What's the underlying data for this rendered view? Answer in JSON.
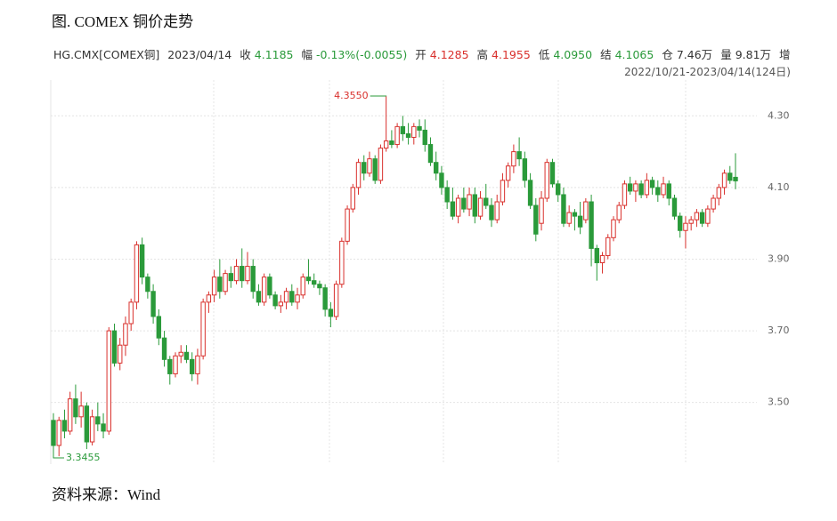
{
  "title": "图. COMEX 铜价走势",
  "header": {
    "symbol": "HG.CMX[COMEX铜]",
    "date": "2023/04/14",
    "items": [
      {
        "label": "收",
        "value": "4.1185",
        "color": "#2a9a3a"
      },
      {
        "label": "幅",
        "value": "-0.13%(-0.0055)",
        "color": "#2a9a3a"
      },
      {
        "label": "开",
        "value": "4.1285",
        "color": "#d9302c"
      },
      {
        "label": "高",
        "value": "4.1955",
        "color": "#d9302c"
      },
      {
        "label": "低",
        "value": "4.0950",
        "color": "#2a9a3a"
      },
      {
        "label": "结",
        "value": "4.1065",
        "color": "#2a9a3a"
      },
      {
        "label": "仓",
        "value": "7.46万",
        "color": "#333333"
      },
      {
        "label": "量",
        "value": "9.81万",
        "color": "#333333"
      },
      {
        "label": "增",
        "value": "",
        "color": "#333333"
      }
    ],
    "range": "2022/10/21-2023/04/14(124日)"
  },
  "source": "资料来源：Wind",
  "chart_data": {
    "type": "candlestick",
    "up_color": "#d9302c",
    "down_color": "#2a9a3a",
    "ylim": [
      3.328,
      4.4
    ],
    "yticks": [
      {
        "value": 3.5,
        "label": "3.50"
      },
      {
        "value": 3.7,
        "label": "3.70"
      },
      {
        "value": 3.9,
        "label": "3.90"
      },
      {
        "value": 4.1,
        "label": "4.10"
      },
      {
        "value": 4.3,
        "label": "4.30"
      }
    ],
    "grid": true,
    "max_label": "4.3550",
    "max_index": 60,
    "min_label": "3.3455",
    "min_index": 0,
    "candles": [
      [
        3.45,
        3.47,
        3.3455,
        3.38
      ],
      [
        3.38,
        3.46,
        3.35,
        3.45
      ],
      [
        3.45,
        3.48,
        3.4,
        3.42
      ],
      [
        3.42,
        3.53,
        3.41,
        3.51
      ],
      [
        3.51,
        3.55,
        3.44,
        3.46
      ],
      [
        3.46,
        3.53,
        3.43,
        3.49
      ],
      [
        3.49,
        3.5,
        3.37,
        3.39
      ],
      [
        3.39,
        3.48,
        3.38,
        3.46
      ],
      [
        3.46,
        3.5,
        3.42,
        3.44
      ],
      [
        3.44,
        3.47,
        3.4,
        3.42
      ],
      [
        3.42,
        3.71,
        3.41,
        3.7
      ],
      [
        3.7,
        3.72,
        3.6,
        3.61
      ],
      [
        3.61,
        3.68,
        3.59,
        3.66
      ],
      [
        3.66,
        3.74,
        3.63,
        3.72
      ],
      [
        3.72,
        3.79,
        3.7,
        3.78
      ],
      [
        3.78,
        3.95,
        3.76,
        3.94
      ],
      [
        3.94,
        3.96,
        3.83,
        3.85
      ],
      [
        3.85,
        3.86,
        3.79,
        3.81
      ],
      [
        3.81,
        3.83,
        3.72,
        3.74
      ],
      [
        3.74,
        3.76,
        3.66,
        3.68
      ],
      [
        3.68,
        3.7,
        3.6,
        3.62
      ],
      [
        3.62,
        3.63,
        3.55,
        3.58
      ],
      [
        3.58,
        3.64,
        3.57,
        3.63
      ],
      [
        3.63,
        3.66,
        3.61,
        3.64
      ],
      [
        3.64,
        3.66,
        3.61,
        3.62
      ],
      [
        3.62,
        3.64,
        3.56,
        3.58
      ],
      [
        3.58,
        3.65,
        3.55,
        3.63
      ],
      [
        3.63,
        3.79,
        3.62,
        3.78
      ],
      [
        3.78,
        3.81,
        3.75,
        3.8
      ],
      [
        3.8,
        3.87,
        3.78,
        3.85
      ],
      [
        3.85,
        3.9,
        3.79,
        3.81
      ],
      [
        3.81,
        3.87,
        3.8,
        3.86
      ],
      [
        3.86,
        3.88,
        3.82,
        3.84
      ],
      [
        3.84,
        3.9,
        3.83,
        3.88
      ],
      [
        3.88,
        3.93,
        3.82,
        3.84
      ],
      [
        3.84,
        3.92,
        3.83,
        3.88
      ],
      [
        3.88,
        3.9,
        3.79,
        3.81
      ],
      [
        3.81,
        3.83,
        3.77,
        3.78
      ],
      [
        3.78,
        3.86,
        3.77,
        3.85
      ],
      [
        3.85,
        3.86,
        3.79,
        3.8
      ],
      [
        3.8,
        3.81,
        3.76,
        3.77
      ],
      [
        3.77,
        3.8,
        3.75,
        3.78
      ],
      [
        3.78,
        3.82,
        3.76,
        3.81
      ],
      [
        3.81,
        3.83,
        3.77,
        3.78
      ],
      [
        3.78,
        3.82,
        3.76,
        3.8
      ],
      [
        3.8,
        3.86,
        3.79,
        3.85
      ],
      [
        3.85,
        3.9,
        3.83,
        3.84
      ],
      [
        3.84,
        3.86,
        3.82,
        3.83
      ],
      [
        3.83,
        3.84,
        3.8,
        3.82
      ],
      [
        3.82,
        3.83,
        3.74,
        3.76
      ],
      [
        3.76,
        3.78,
        3.71,
        3.74
      ],
      [
        3.74,
        3.84,
        3.73,
        3.83
      ],
      [
        3.83,
        3.96,
        3.82,
        3.95
      ],
      [
        3.95,
        4.05,
        3.94,
        4.04
      ],
      [
        4.04,
        4.11,
        4.03,
        4.1
      ],
      [
        4.1,
        4.18,
        4.08,
        4.17
      ],
      [
        4.17,
        4.19,
        4.12,
        4.14
      ],
      [
        4.14,
        4.2,
        4.13,
        4.18
      ],
      [
        4.18,
        4.19,
        4.11,
        4.12
      ],
      [
        4.12,
        4.22,
        4.11,
        4.21
      ],
      [
        4.21,
        4.355,
        4.2,
        4.23
      ],
      [
        4.23,
        4.26,
        4.21,
        4.22
      ],
      [
        4.22,
        4.28,
        4.21,
        4.27
      ],
      [
        4.27,
        4.3,
        4.23,
        4.25
      ],
      [
        4.25,
        4.28,
        4.22,
        4.24
      ],
      [
        4.24,
        4.28,
        4.22,
        4.27
      ],
      [
        4.27,
        4.29,
        4.24,
        4.26
      ],
      [
        4.26,
        4.29,
        4.2,
        4.22
      ],
      [
        4.22,
        4.24,
        4.16,
        4.17
      ],
      [
        4.17,
        4.2,
        4.12,
        4.14
      ],
      [
        4.14,
        4.16,
        4.08,
        4.1
      ],
      [
        4.1,
        4.12,
        4.04,
        4.06
      ],
      [
        4.06,
        4.1,
        4.01,
        4.02
      ],
      [
        4.02,
        4.08,
        4.0,
        4.07
      ],
      [
        4.07,
        4.1,
        4.03,
        4.04
      ],
      [
        4.04,
        4.1,
        4.02,
        4.08
      ],
      [
        4.08,
        4.1,
        4.0,
        4.02
      ],
      [
        4.02,
        4.09,
        4.01,
        4.07
      ],
      [
        4.07,
        4.11,
        4.04,
        4.05
      ],
      [
        4.05,
        4.07,
        3.99,
        4.01
      ],
      [
        4.01,
        4.08,
        4.0,
        4.06
      ],
      [
        4.06,
        4.14,
        4.05,
        4.12
      ],
      [
        4.12,
        4.17,
        4.1,
        4.16
      ],
      [
        4.16,
        4.22,
        4.14,
        4.2
      ],
      [
        4.2,
        4.24,
        4.16,
        4.18
      ],
      [
        4.18,
        4.2,
        4.1,
        4.12
      ],
      [
        4.12,
        4.14,
        4.04,
        4.05
      ],
      [
        4.05,
        4.07,
        3.95,
        3.97
      ],
      [
        4.0,
        4.09,
        3.98,
        4.07
      ],
      [
        4.07,
        4.18,
        4.06,
        4.17
      ],
      [
        4.17,
        4.18,
        4.1,
        4.11
      ],
      [
        4.11,
        4.12,
        4.06,
        4.08
      ],
      [
        4.08,
        4.1,
        3.99,
        4.0
      ],
      [
        4.0,
        4.05,
        3.99,
        4.03
      ],
      [
        4.03,
        4.04,
        3.98,
        4.02
      ],
      [
        4.02,
        4.06,
        3.97,
        3.99
      ],
      [
        4.01,
        4.07,
        4.0,
        4.06
      ],
      [
        4.06,
        4.08,
        3.88,
        3.93
      ],
      [
        3.93,
        3.94,
        3.84,
        3.89
      ],
      [
        3.89,
        3.92,
        3.86,
        3.91
      ],
      [
        3.91,
        3.97,
        3.9,
        3.96
      ],
      [
        3.96,
        4.02,
        3.95,
        4.01
      ],
      [
        4.01,
        4.06,
        4.0,
        4.05
      ],
      [
        4.05,
        4.12,
        4.04,
        4.11
      ],
      [
        4.11,
        4.13,
        4.08,
        4.09
      ],
      [
        4.09,
        4.12,
        4.06,
        4.11
      ],
      [
        4.11,
        4.12,
        4.07,
        4.08
      ],
      [
        4.08,
        4.14,
        4.07,
        4.12
      ],
      [
        4.12,
        4.13,
        4.08,
        4.1
      ],
      [
        4.1,
        4.12,
        4.06,
        4.08
      ],
      [
        4.08,
        4.13,
        4.07,
        4.11
      ],
      [
        4.11,
        4.12,
        4.05,
        4.07
      ],
      [
        4.07,
        4.08,
        4.01,
        4.02
      ],
      [
        4.02,
        4.03,
        3.96,
        3.98
      ],
      [
        3.98,
        4.02,
        3.93,
        4.0
      ],
      [
        4.0,
        4.02,
        3.98,
        4.01
      ],
      [
        4.01,
        4.04,
        3.99,
        4.03
      ],
      [
        4.03,
        4.04,
        3.99,
        4.0
      ],
      [
        4.0,
        4.05,
        3.99,
        4.04
      ],
      [
        4.04,
        4.08,
        4.03,
        4.07
      ],
      [
        4.07,
        4.11,
        4.05,
        4.1
      ],
      [
        4.1,
        4.15,
        4.08,
        4.14
      ],
      [
        4.14,
        4.16,
        4.11,
        4.12
      ],
      [
        4.1285,
        4.1955,
        4.095,
        4.1185
      ]
    ]
  }
}
